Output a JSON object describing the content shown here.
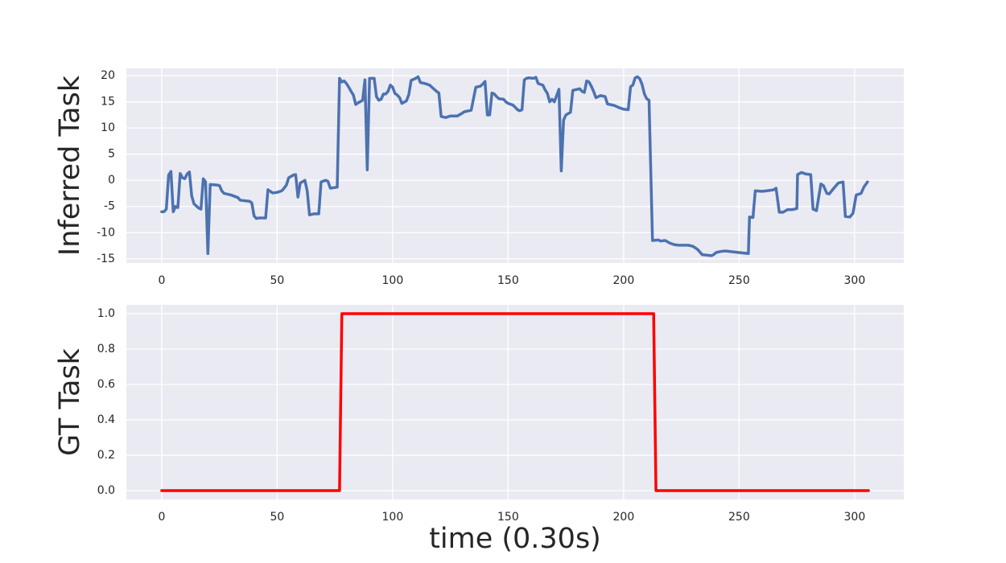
{
  "chart_data": [
    {
      "type": "line",
      "ylabel": "Inferred Task",
      "x": [
        0,
        1,
        2,
        3,
        4,
        5,
        6,
        7,
        8,
        9,
        10,
        11,
        12,
        13,
        14,
        16,
        17,
        18,
        19,
        20,
        21,
        24,
        25,
        26,
        27,
        30,
        33,
        34,
        38,
        39,
        40,
        41,
        42,
        45,
        46,
        48,
        50,
        52,
        53,
        54,
        55,
        57,
        58,
        59,
        60,
        62,
        63,
        64,
        66,
        68,
        69,
        71,
        72,
        73,
        76,
        77,
        78,
        79,
        80,
        81,
        82,
        83,
        84,
        85,
        87,
        88,
        89,
        90,
        92,
        93,
        94,
        95,
        96,
        97,
        98,
        99,
        100,
        101,
        102,
        103,
        104,
        106,
        107,
        108,
        110,
        111,
        112,
        114,
        116,
        117,
        119,
        120,
        121,
        123,
        125,
        128,
        130,
        131,
        134,
        136,
        138,
        139,
        140,
        141,
        142,
        143,
        144,
        145,
        146,
        148,
        149,
        150,
        152,
        153,
        154,
        155,
        156,
        157,
        158,
        159,
        161,
        162,
        163,
        165,
        166,
        167,
        168,
        169,
        170,
        172,
        173,
        174,
        175,
        177,
        178,
        181,
        182,
        183,
        184,
        185,
        186,
        187,
        188,
        190,
        192,
        193,
        196,
        198,
        200,
        202,
        203,
        204,
        205,
        206,
        207,
        208,
        209,
        210,
        211,
        212.5,
        215,
        216,
        218,
        220,
        222,
        224,
        228,
        230,
        232,
        234,
        236,
        238,
        239,
        240,
        242,
        244,
        248,
        252,
        254,
        254.5,
        256,
        257,
        260,
        262,
        265,
        266,
        267.4,
        269,
        271,
        273,
        275,
        275.3,
        277,
        279,
        281,
        282,
        283.5,
        285.4,
        286.5,
        288,
        289,
        291,
        293,
        295,
        296,
        298,
        299.3,
        300.7,
        302.8,
        304,
        305.6
      ],
      "series": [
        {
          "color": "#4c72b0",
          "values": [
            -6,
            -6,
            -5.5,
            1,
            1.7,
            -6,
            -5,
            -5.2,
            1.3,
            0.5,
            0.3,
            1.2,
            1.6,
            -3,
            -4.5,
            -5.3,
            -5.5,
            0.3,
            -0.3,
            -14,
            -0.8,
            -0.9,
            -1,
            -2,
            -2.5,
            -2.8,
            -3.3,
            -3.8,
            -4,
            -4.3,
            -6.8,
            -7.3,
            -7.2,
            -7.2,
            -1.8,
            -2.4,
            -2.3,
            -2,
            -1.5,
            -0.9,
            0.5,
            1,
            1.1,
            -3.2,
            -0.5,
            0,
            -2,
            -6.6,
            -6.4,
            -6.4,
            -0.3,
            0,
            -0.2,
            -1.5,
            -1.3,
            19.5,
            18.8,
            19,
            18.5,
            17.8,
            17,
            16.3,
            14.5,
            14.8,
            15.3,
            19.2,
            2,
            19.5,
            19.5,
            16,
            15.3,
            15.5,
            16.5,
            16.5,
            17,
            18.2,
            17.8,
            16.6,
            16.3,
            15.8,
            14.7,
            15.2,
            16.4,
            19.1,
            19.5,
            19.8,
            18.7,
            18.5,
            18.2,
            17.8,
            17,
            16.7,
            12.2,
            12,
            12.3,
            12.3,
            12.8,
            13.1,
            13.4,
            17.8,
            18,
            18.4,
            18.9,
            12.5,
            12.5,
            16.7,
            16.5,
            16,
            15.6,
            15.5,
            15,
            14.7,
            14.4,
            14,
            13.5,
            13.3,
            13.5,
            19.2,
            19.5,
            19.6,
            19.5,
            19.7,
            18.5,
            18.2,
            17.3,
            16.6,
            15,
            15.5,
            15,
            17.4,
            1.8,
            11.5,
            12.5,
            13,
            17.2,
            17.5,
            17,
            16.8,
            19,
            18.8,
            18,
            17,
            15.8,
            16.2,
            16,
            14.6,
            14.3,
            13.9,
            13.6,
            13.5,
            17.9,
            18.2,
            19.6,
            19.8,
            19.4,
            18.3,
            16.5,
            15.6,
            15.3,
            -11.5,
            -11.4,
            -11.6,
            -11.5,
            -12,
            -12.3,
            -12.4,
            -12.4,
            -12.6,
            -13.2,
            -14.2,
            -14.3,
            -14.4,
            -14.2,
            -13.8,
            -13.6,
            -13.5,
            -13.7,
            -13.9,
            -14,
            -7,
            -7.1,
            -2,
            -2.1,
            -2,
            -1.8,
            -1.5,
            -6.1,
            -6.1,
            -5.6,
            -5.6,
            -5.4,
            1.1,
            1.5,
            1.2,
            1.1,
            -5.5,
            -5.8,
            -0.7,
            -1,
            -2.5,
            -2.6,
            -1.5,
            -0.5,
            -0.3,
            -6.9,
            -7,
            -6.3,
            -2.8,
            -2.5,
            -1.3,
            -0.3
          ]
        }
      ],
      "xlim": [
        -15.3,
        321.3
      ],
      "xticks": [
        0,
        50,
        100,
        150,
        200,
        250,
        300
      ],
      "ylim": [
        -15.8,
        21.4
      ],
      "yticks": [
        -15,
        -10,
        -5,
        0,
        5,
        10,
        15,
        20
      ],
      "grid": true
    },
    {
      "type": "line",
      "ylabel": "GT Task",
      "xlabel": "time (0.30s)",
      "x": [
        0,
        77,
        78,
        213,
        214,
        306
      ],
      "series": [
        {
          "color": "#ff0000",
          "values": [
            0,
            0,
            1,
            1,
            0,
            0
          ]
        }
      ],
      "xlim": [
        -15.3,
        321.3
      ],
      "xticks": [
        0,
        50,
        100,
        150,
        200,
        250,
        300
      ],
      "ylim": [
        -0.05,
        1.05
      ],
      "yticks": [
        {
          "value": 0,
          "label": "0.0"
        },
        0.2,
        0.4,
        0.6,
        0.8,
        {
          "value": 1,
          "label": "1.0"
        }
      ],
      "grid": true
    }
  ]
}
